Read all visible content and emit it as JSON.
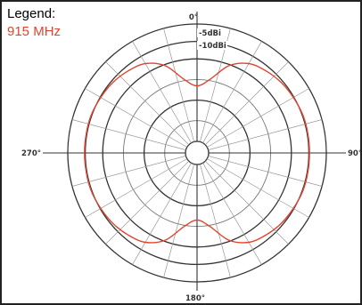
{
  "legend": {
    "title": "Legend:",
    "entry": "915 MHz",
    "entry_color": "#e0442e"
  },
  "chart_data": {
    "type": "polar-line",
    "title": "",
    "angle_labels": [
      {
        "angle": 0,
        "text": "0°"
      },
      {
        "angle": 90,
        "text": "90°"
      },
      {
        "angle": 180,
        "text": "180°"
      },
      {
        "angle": 270,
        "text": "270°"
      }
    ],
    "radial_labels": [
      "-5dBi",
      "-10dBi"
    ],
    "series": [
      {
        "name": "915 MHz",
        "color": "#e0442e",
        "theta_deg": [
          0,
          10,
          20,
          30,
          40,
          50,
          60,
          70,
          80,
          90,
          100,
          110,
          120,
          130,
          140,
          150,
          160,
          170,
          180,
          190,
          200,
          210,
          220,
          230,
          240,
          250,
          260,
          270,
          280,
          290,
          300,
          310,
          320,
          330,
          340,
          350
        ],
        "r_norm": [
          0.52,
          0.58,
          0.72,
          0.8,
          0.83,
          0.85,
          0.86,
          0.87,
          0.87,
          0.87,
          0.87,
          0.87,
          0.86,
          0.85,
          0.83,
          0.8,
          0.72,
          0.58,
          0.52,
          0.58,
          0.72,
          0.8,
          0.83,
          0.85,
          0.86,
          0.87,
          0.87,
          0.87,
          0.87,
          0.87,
          0.86,
          0.85,
          0.83,
          0.8,
          0.72,
          0.58
        ]
      }
    ]
  }
}
